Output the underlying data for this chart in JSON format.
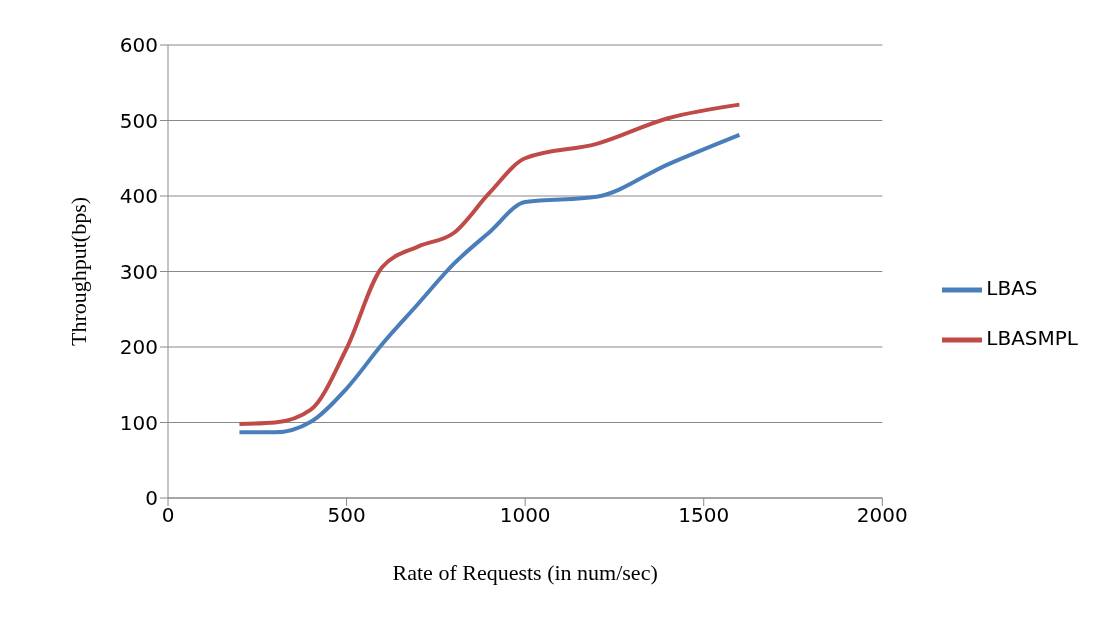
{
  "chart_data": {
    "type": "line",
    "xlabel": "Rate of Requests (in num/sec)",
    "ylabel": "Throughput(bps)",
    "x": [
      200,
      300,
      400,
      500,
      600,
      700,
      800,
      900,
      1000,
      1200,
      1400,
      1600
    ],
    "series": [
      {
        "name": "LBAS",
        "color": "#4a7ebb",
        "values": [
          87,
          87,
          101,
          145,
          204,
          257,
          310,
          352,
          392,
          399,
          442,
          481
        ]
      },
      {
        "name": "LBASMPL",
        "color": "#be4b48",
        "values": [
          98,
          100,
          117,
          198,
          306,
          333,
          351,
          404,
          450,
          469,
          503,
          521
        ]
      }
    ],
    "xlim": [
      0,
      2000
    ],
    "xticks": [
      0,
      500,
      1000,
      1500,
      2000
    ],
    "ylim": [
      0,
      600
    ],
    "yticks": [
      0,
      100,
      200,
      300,
      400,
      500,
      600
    ],
    "grid": "y",
    "legend": "right",
    "marker": "none",
    "line_style": "solid"
  }
}
